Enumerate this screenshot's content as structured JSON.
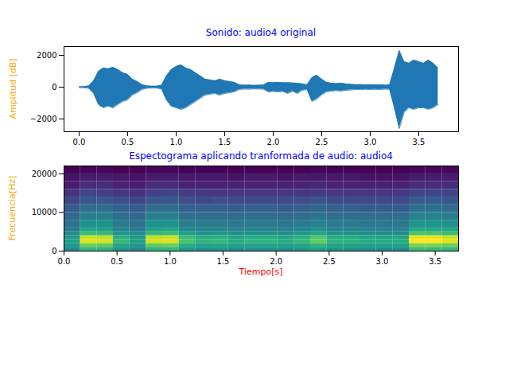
{
  "chart_data": [
    {
      "type": "area",
      "title": "Sonido: audio4 original",
      "y_label": "Amplitud [dB]",
      "color": "#1f77b4",
      "x": [
        0,
        0.05,
        0.1,
        0.15,
        0.2,
        0.25,
        0.3,
        0.35,
        0.4,
        0.45,
        0.5,
        0.55,
        0.6,
        0.65,
        0.7,
        0.75,
        0.8,
        0.85,
        0.9,
        0.95,
        1.0,
        1.05,
        1.1,
        1.15,
        1.2,
        1.25,
        1.3,
        1.35,
        1.4,
        1.45,
        1.5,
        1.55,
        1.6,
        1.65,
        1.7,
        1.75,
        1.8,
        1.85,
        1.9,
        1.95,
        2.0,
        2.05,
        2.1,
        2.15,
        2.2,
        2.25,
        2.3,
        2.35,
        2.4,
        2.45,
        2.5,
        2.55,
        2.6,
        2.65,
        2.7,
        2.75,
        2.8,
        2.85,
        2.9,
        2.95,
        3.0,
        3.05,
        3.1,
        3.15,
        3.2,
        3.25,
        3.3,
        3.35,
        3.4,
        3.45,
        3.5,
        3.55,
        3.6,
        3.65,
        3.7
      ],
      "y_max": [
        30,
        40,
        80,
        400,
        1000,
        1200,
        1150,
        1250,
        1100,
        900,
        800,
        500,
        350,
        150,
        70,
        60,
        60,
        120,
        700,
        1100,
        1300,
        1400,
        1200,
        1100,
        900,
        700,
        500,
        450,
        400,
        500,
        400,
        350,
        300,
        150,
        120,
        130,
        110,
        120,
        130,
        300,
        280,
        300,
        270,
        280,
        260,
        250,
        200,
        150,
        600,
        750,
        500,
        300,
        250,
        220,
        250,
        200,
        180,
        150,
        160,
        140,
        150,
        140,
        150,
        130,
        140,
        1200,
        2300,
        1600,
        1500,
        1700,
        1600,
        1500,
        1700,
        1500,
        1200
      ],
      "y_min": [
        -30,
        -40,
        -80,
        -400,
        -1100,
        -1300,
        -1200,
        -1300,
        -1100,
        -900,
        -800,
        -500,
        -350,
        -150,
        -70,
        -60,
        -60,
        -120,
        -800,
        -1200,
        -1300,
        -1400,
        -1300,
        -1100,
        -900,
        -700,
        -500,
        -450,
        -400,
        -500,
        -400,
        -350,
        -300,
        -150,
        -120,
        -130,
        -110,
        -120,
        -130,
        -300,
        -280,
        -300,
        -280,
        -400,
        -260,
        -400,
        -200,
        -150,
        -900,
        -750,
        -500,
        -300,
        -250,
        -220,
        -250,
        -200,
        -180,
        -150,
        -160,
        -140,
        -150,
        -140,
        -150,
        -130,
        -140,
        -1300,
        -2600,
        -1600,
        -1300,
        -1400,
        -1300,
        -1300,
        -1400,
        -1300,
        -1100
      ],
      "xlim": [
        -0.156,
        3.91
      ],
      "xticks": [
        {
          "value": 0,
          "label": "0.0"
        },
        {
          "value": 0.5,
          "label": "0.5"
        },
        {
          "value": 1,
          "label": "1.0"
        },
        {
          "value": 1.5,
          "label": "1.5"
        },
        {
          "value": 2,
          "label": "2.0"
        },
        {
          "value": 2.5,
          "label": "2.5"
        },
        {
          "value": 3,
          "label": "3.0"
        },
        {
          "value": 3.5,
          "label": "3.5"
        }
      ],
      "ylim": [
        -2800,
        2550
      ],
      "yticks": [
        {
          "value": -2000,
          "label": "−2000"
        },
        0,
        2000
      ]
    },
    {
      "type": "heatmap",
      "title": "Espectograma aplicando tranformada de audio: audio4",
      "x_label": "Tiempo[s]",
      "y_label": "Frecuencia[Hz]",
      "color": "viridis",
      "x_edges": [
        0,
        0.155,
        0.31,
        0.465,
        0.62,
        0.775,
        0.93,
        1.085,
        1.24,
        1.395,
        1.55,
        1.705,
        1.86,
        2.015,
        2.17,
        2.325,
        2.48,
        2.635,
        2.79,
        2.945,
        3.1,
        3.255,
        3.41,
        3.565,
        3.72
      ],
      "y_edges": [
        0,
        1000,
        2000,
        3000,
        4000,
        5000,
        6000,
        8000,
        10000,
        12000,
        14000,
        16000,
        18000,
        20000,
        22050
      ],
      "cells": [
        [
          57,
          69,
          68,
          60,
          57,
          68,
          69,
          61,
          59,
          60,
          58,
          59,
          59,
          58,
          60,
          63,
          59,
          59,
          58,
          58,
          58,
          70,
          70,
          69
        ],
        [
          60,
          76,
          75,
          64,
          60,
          75,
          76,
          66,
          63,
          64,
          62,
          63,
          63,
          62,
          64,
          68,
          63,
          63,
          62,
          62,
          62,
          78,
          78,
          76
        ],
        [
          63,
          87,
          86,
          69,
          63,
          86,
          87,
          72,
          68,
          69,
          66,
          68,
          68,
          66,
          69,
          75,
          68,
          68,
          66,
          66,
          66,
          90,
          90,
          87
        ],
        [
          61,
          85,
          84,
          67,
          61,
          84,
          85,
          70,
          66,
          67,
          64,
          66,
          66,
          64,
          67,
          73,
          66,
          66,
          64,
          64,
          64,
          88,
          88,
          85
        ],
        [
          57,
          70,
          69,
          60,
          57,
          69,
          70,
          62,
          59,
          60,
          58,
          59,
          59,
          58,
          60,
          64,
          59,
          59,
          58,
          58,
          58,
          72,
          72,
          70
        ],
        [
          53,
          64,
          63,
          56,
          53,
          63,
          64,
          57,
          55,
          56,
          55,
          55,
          55,
          55,
          56,
          59,
          55,
          55,
          55,
          55,
          55,
          65,
          65,
          64
        ],
        [
          51,
          59,
          59,
          53,
          51,
          59,
          59,
          54,
          53,
          53,
          52,
          53,
          53,
          52,
          53,
          55,
          53,
          53,
          52,
          52,
          52,
          60,
          60,
          59
        ],
        [
          48,
          54,
          54,
          49,
          48,
          54,
          54,
          50,
          49,
          49,
          49,
          49,
          49,
          49,
          49,
          51,
          49,
          49,
          49,
          49,
          49,
          55,
          55,
          54
        ],
        [
          45,
          49,
          49,
          46,
          45,
          49,
          49,
          46,
          46,
          46,
          45,
          46,
          46,
          45,
          46,
          47,
          46,
          46,
          45,
          45,
          45,
          50,
          50,
          49
        ],
        [
          40,
          44,
          44,
          42,
          40,
          44,
          44,
          42,
          41,
          42,
          41,
          41,
          41,
          41,
          42,
          43,
          41,
          41,
          41,
          41,
          41,
          45,
          45,
          44
        ],
        [
          36,
          40,
          39,
          37,
          36,
          39,
          40,
          38,
          37,
          37,
          37,
          37,
          37,
          37,
          37,
          38,
          37,
          37,
          37,
          37,
          37,
          40,
          40,
          40
        ],
        [
          32,
          35,
          35,
          33,
          32,
          35,
          35,
          33,
          33,
          33,
          33,
          33,
          33,
          33,
          33,
          34,
          33,
          33,
          33,
          33,
          33,
          35,
          35,
          35
        ],
        [
          30,
          32,
          32,
          31,
          30,
          32,
          32,
          31,
          31,
          31,
          30,
          31,
          31,
          30,
          31,
          31,
          31,
          31,
          30,
          30,
          30,
          32,
          32,
          32
        ],
        [
          27,
          28,
          28,
          27,
          27,
          28,
          28,
          27,
          27,
          27,
          27,
          27,
          27,
          27,
          27,
          28,
          27,
          27,
          27,
          27,
          27,
          28,
          28,
          28
        ]
      ],
      "xlim": [
        0,
        3.72
      ],
      "xticks": [
        {
          "value": 0,
          "label": "0.0"
        },
        {
          "value": 0.5,
          "label": "0.5"
        },
        {
          "value": 1,
          "label": "1.0"
        },
        {
          "value": 1.5,
          "label": "1.5"
        },
        {
          "value": 2,
          "label": "2.0"
        },
        {
          "value": 2.5,
          "label": "2.5"
        },
        {
          "value": 3,
          "label": "3.0"
        },
        {
          "value": 3.5,
          "label": "3.5"
        }
      ],
      "ylim": [
        0,
        22050
      ],
      "yticks": [
        0,
        10000,
        20000
      ]
    }
  ]
}
